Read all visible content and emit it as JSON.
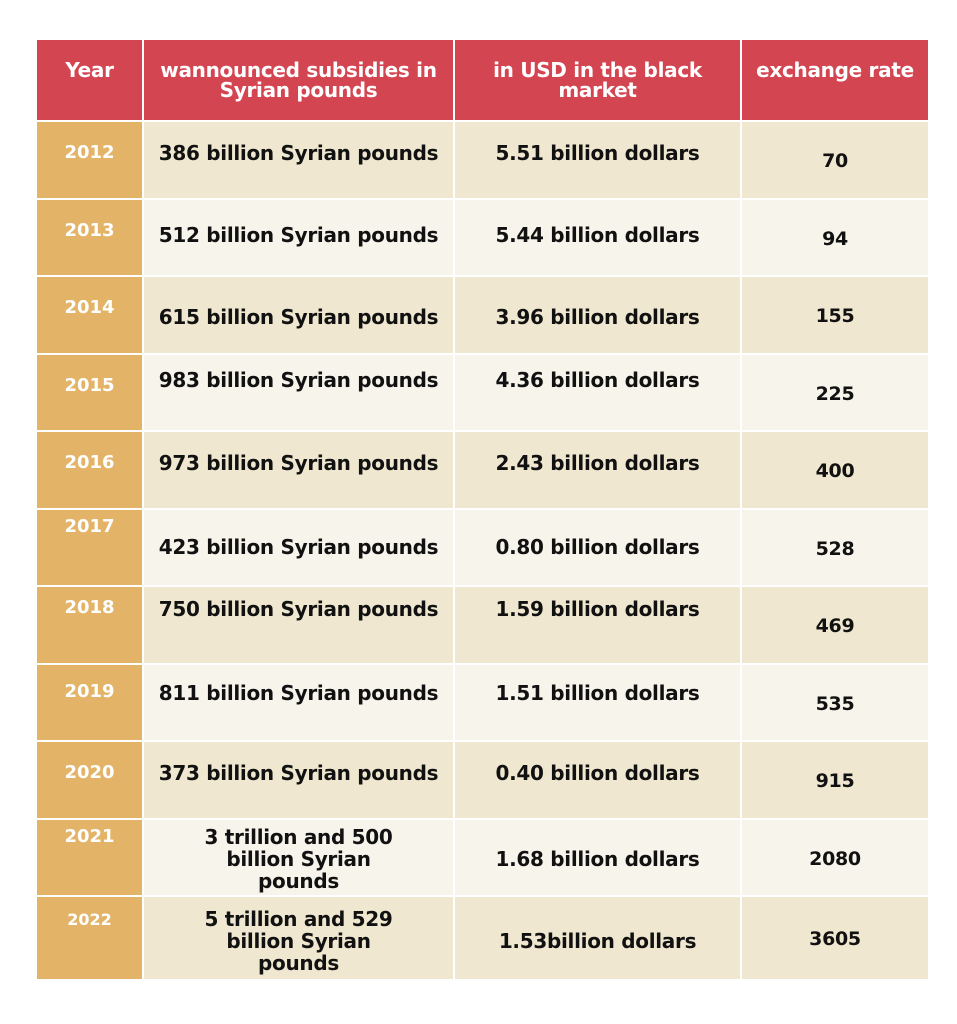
{
  "table": {
    "headers": {
      "year": "Year",
      "subsidies": "wannounced subsidies in Syrian pounds",
      "usd": "in USD in the black market",
      "rate": "exchange rate"
    },
    "rows": [
      {
        "year": "2012",
        "subsidies": "386  billion Syrian pounds",
        "usd": "5.51 billion dollars",
        "rate": "70"
      },
      {
        "year": "2013",
        "subsidies": "512  billion Syrian pounds",
        "usd": "5.44 billion dollars",
        "rate": "94"
      },
      {
        "year": "2014",
        "subsidies": "615  billion Syrian pounds",
        "usd": "3.96 billion dollars",
        "rate": "155"
      },
      {
        "year": "2015",
        "subsidies": "983  billion Syrian pounds",
        "usd": "4.36 billion dollars",
        "rate": "225"
      },
      {
        "year": "2016",
        "subsidies": "973 billion Syrian pounds",
        "usd": "2.43 billion dollars",
        "rate": "400"
      },
      {
        "year": "2017",
        "subsidies": "423  billion Syrian pounds",
        "usd": "0.80 billion dollars",
        "rate": "528"
      },
      {
        "year": "2018",
        "subsidies": "750  billion Syrian pounds",
        "usd": "1.59 billion dollars",
        "rate": "469"
      },
      {
        "year": "2019",
        "subsidies": "811  billion Syrian pounds",
        "usd": "1.51 billion dollars",
        "rate": "535"
      },
      {
        "year": "2020",
        "subsidies": "373  billion Syrian pounds",
        "usd": "0.40 billion dollars",
        "rate": "915"
      },
      {
        "year": "2021",
        "subsidies": "3 trillion and 500 billion Syrian pounds",
        "usd": "1.68 billion dollars",
        "rate": "2080"
      },
      {
        "year": "2022",
        "subsidies": "5 trillion and 529 billion Syrian pounds",
        "usd": "1.53billion dollars",
        "rate": "3605"
      }
    ]
  },
  "colors": {
    "header_bg": "#d44552",
    "year_bg": "#e3b468",
    "row_odd_bg": "#efe7cf",
    "row_even_bg": "#f7f4eb"
  }
}
